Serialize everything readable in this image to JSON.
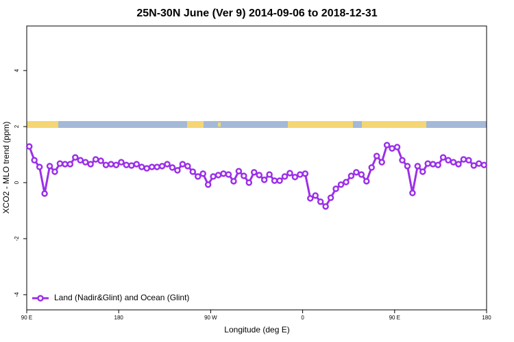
{
  "chart_data": {
    "type": "line",
    "title": "25N-30N June (Ver 9)   2014-09-06 to 2018-12-31",
    "x_label": "Longitude (deg E)",
    "y_label": "XCO2 - MLO trend (ppm)",
    "xlim": [
      90,
      540
    ],
    "ylim": [
      -4.54,
      5.59
    ],
    "xticks": [
      {
        "value": 90,
        "label": "90 E"
      },
      {
        "value": 180,
        "label": "180"
      },
      {
        "value": 270,
        "label": "90 W"
      },
      {
        "value": 360,
        "label": "0"
      },
      {
        "value": 450,
        "label": "90 E"
      },
      {
        "value": 540,
        "label": "180"
      }
    ],
    "yticks": [
      -4,
      -2,
      0,
      2,
      4
    ],
    "legend_position": "bottom-left",
    "x": [
      92.5,
      97.5,
      102.5,
      107.5,
      112.5,
      117.5,
      122.5,
      127.5,
      132.5,
      137.5,
      142.5,
      147.5,
      152.5,
      157.5,
      162.5,
      167.5,
      172.5,
      177.5,
      182.5,
      187.5,
      192.5,
      197.5,
      202.5,
      207.5,
      212.5,
      217.5,
      222.5,
      227.5,
      232.5,
      237.5,
      242.5,
      247.5,
      252.5,
      257.5,
      262.5,
      267.5,
      272.5,
      277.5,
      282.5,
      287.5,
      292.5,
      297.5,
      302.5,
      307.5,
      312.5,
      317.5,
      322.5,
      327.5,
      332.5,
      337.5,
      342.5,
      347.5,
      352.5,
      357.5,
      362.5,
      367.5,
      372.5,
      377.5,
      382.5,
      387.5,
      392.5,
      397.5,
      402.5,
      407.5,
      412.5,
      417.5,
      422.5,
      427.5,
      432.5,
      437.5,
      442.5,
      447.5,
      452.5,
      457.5,
      462.5,
      467.5,
      472.5,
      477.5,
      482.5,
      487.5,
      492.5,
      497.5,
      502.5,
      507.5,
      512.5,
      517.5,
      522.5,
      527.5,
      532.5,
      537.5
    ],
    "series": [
      {
        "name": "Land (Nadir&Glint) and Ocean (Glint)",
        "color": "#9b30e8",
        "values": [
          1.29,
          0.8,
          0.56,
          -0.39,
          0.59,
          0.39,
          0.68,
          0.66,
          0.66,
          0.9,
          0.8,
          0.73,
          0.66,
          0.83,
          0.78,
          0.63,
          0.66,
          0.63,
          0.73,
          0.63,
          0.61,
          0.66,
          0.56,
          0.51,
          0.56,
          0.56,
          0.59,
          0.66,
          0.54,
          0.44,
          0.66,
          0.59,
          0.39,
          0.22,
          0.32,
          -0.07,
          0.22,
          0.27,
          0.32,
          0.29,
          0.05,
          0.41,
          0.24,
          0,
          0.37,
          0.27,
          0.1,
          0.29,
          0.07,
          0.07,
          0.22,
          0.34,
          0.2,
          0.29,
          0.32,
          -0.56,
          -0.46,
          -0.68,
          -0.85,
          -0.54,
          -0.22,
          -0.07,
          0.02,
          0.24,
          0.37,
          0.29,
          0.05,
          0.54,
          0.95,
          0.73,
          1.34,
          1.22,
          1.27,
          0.8,
          0.59,
          -0.37,
          0.59,
          0.39,
          0.68,
          0.66,
          0.63,
          0.9,
          0.8,
          0.73,
          0.66,
          0.83,
          0.8,
          0.61,
          0.68,
          0.63
        ]
      }
    ]
  }
}
